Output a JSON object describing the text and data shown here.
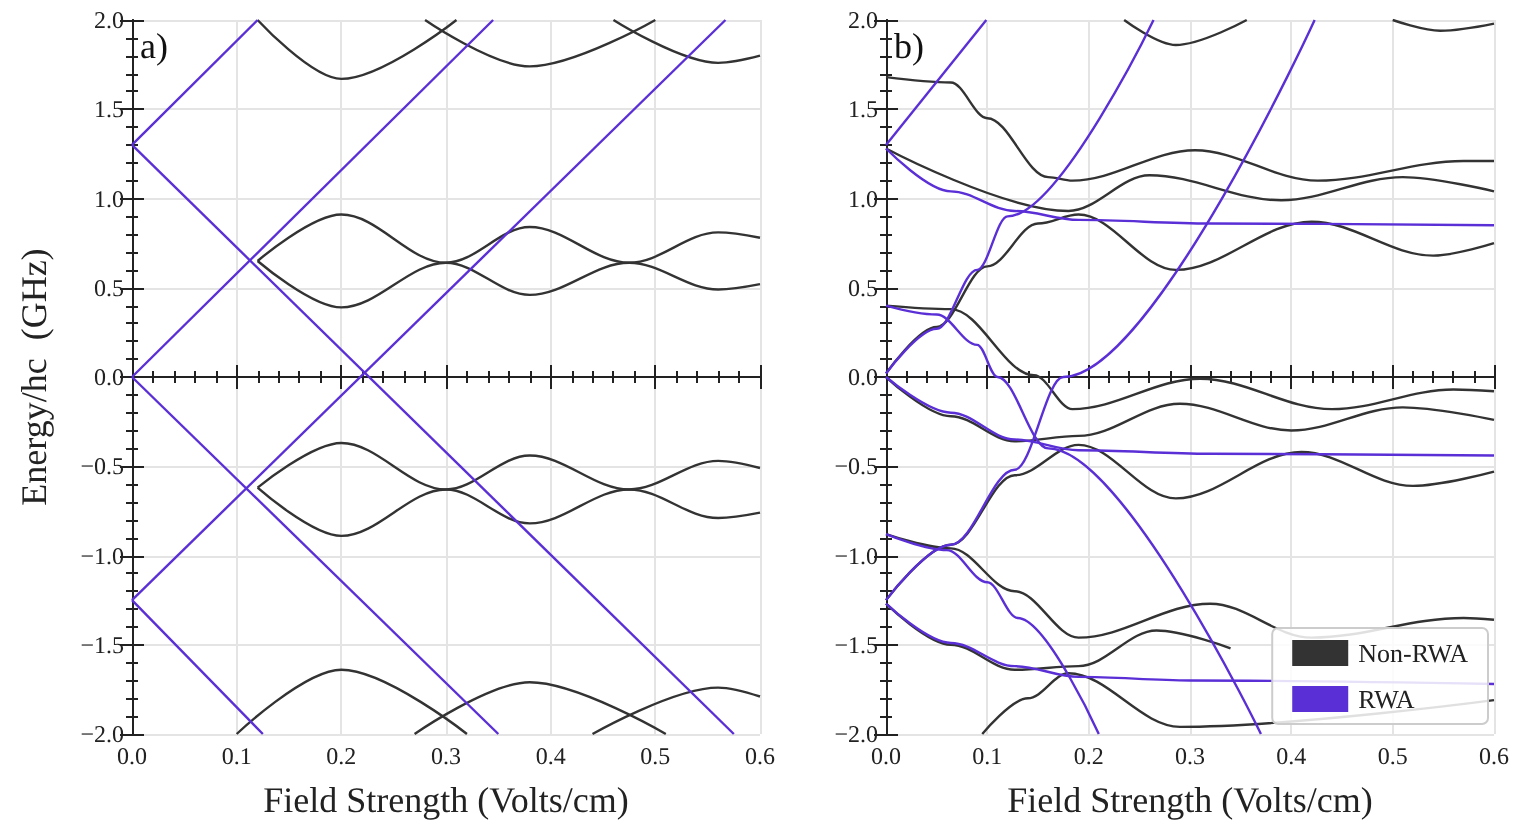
{
  "chart_data": [
    {
      "type": "line",
      "annotations": [
        "a)"
      ],
      "xlabel": "Field Strength (Volts/cm)",
      "ylabel": "Energy/hc  (GHz)",
      "xlim": [
        0,
        0.6
      ],
      "ylim": [
        -2,
        2
      ],
      "xticks": [
        {
          "value": 0,
          "label": "0.0"
        },
        {
          "value": 0.1,
          "label": "0.1"
        },
        {
          "value": 0.2,
          "label": "0.2"
        },
        {
          "value": 0.3,
          "label": "0.3"
        },
        {
          "value": 0.4,
          "label": "0.4"
        },
        {
          "value": 0.5,
          "label": "0.5"
        },
        {
          "value": 0.6,
          "label": "0.6"
        }
      ],
      "yticks": [
        {
          "value": -2,
          "label": "−2.0"
        },
        {
          "value": -1.5,
          "label": "−1.5"
        },
        {
          "value": -1,
          "label": "−1.0"
        },
        {
          "value": -0.5,
          "label": "−0.5"
        },
        {
          "value": 0,
          "label": "0.0"
        },
        {
          "value": 0.5,
          "label": "0.5"
        },
        {
          "value": 1,
          "label": "1.0"
        },
        {
          "value": 1.5,
          "label": "1.5"
        },
        {
          "value": 2,
          "label": "2.0"
        }
      ],
      "grid": true,
      "legend": false,
      "series": [
        {
          "color": "#333333",
          "x": [
            0.12,
            0.2,
            0.3,
            0.38,
            0.475,
            0.56,
            0.6
          ],
          "values": [
            0.65,
            0.91,
            0.64,
            0.46,
            0.64,
            0.81,
            0.78
          ]
        },
        {
          "color": "#333333",
          "x": [
            0.12,
            0.2,
            0.3,
            0.38,
            0.475,
            0.56,
            0.6
          ],
          "values": [
            0.65,
            0.39,
            0.64,
            0.84,
            0.64,
            0.49,
            0.52
          ]
        },
        {
          "color": "#333333",
          "x": [
            0.12,
            0.2,
            0.3,
            0.38,
            0.475,
            0.56,
            0.6
          ],
          "values": [
            -0.62,
            -0.37,
            -0.63,
            -0.82,
            -0.63,
            -0.47,
            -0.51
          ]
        },
        {
          "color": "#333333",
          "x": [
            0.12,
            0.2,
            0.3,
            0.38,
            0.475,
            0.56,
            0.6
          ],
          "values": [
            -0.62,
            -0.89,
            -0.63,
            -0.44,
            -0.63,
            -0.79,
            -0.76
          ]
        },
        {
          "color": "#333333",
          "x": [
            0.12,
            0.2,
            0.31
          ],
          "values": [
            2.0,
            1.67,
            2.0
          ]
        },
        {
          "color": "#333333",
          "x": [
            0.28,
            0.38,
            0.5
          ],
          "values": [
            2.0,
            1.74,
            2.0
          ]
        },
        {
          "color": "#333333",
          "x": [
            0.46,
            0.56,
            0.6
          ],
          "values": [
            2.0,
            1.76,
            1.8
          ]
        },
        {
          "color": "#333333",
          "x": [
            0.1,
            0.2,
            0.32
          ],
          "values": [
            -2.0,
            -1.64,
            -2.0
          ]
        },
        {
          "color": "#333333",
          "x": [
            0.27,
            0.38,
            0.51
          ],
          "values": [
            -2.0,
            -1.71,
            -2.0
          ]
        },
        {
          "color": "#333333",
          "x": [
            0.44,
            0.56,
            0.6
          ],
          "values": [
            -2.0,
            -1.74,
            -1.79
          ]
        },
        {
          "color": "#5a2fd6",
          "x": [
            0,
            0.12
          ],
          "values": [
            1.3,
            2.0
          ]
        },
        {
          "color": "#5a2fd6",
          "x": [
            0,
            0.345
          ],
          "values": [
            0.0,
            2.0
          ]
        },
        {
          "color": "#5a2fd6",
          "x": [
            0,
            0.567
          ],
          "values": [
            -1.25,
            2.0
          ]
        },
        {
          "color": "#5a2fd6",
          "x": [
            0,
            0.575
          ],
          "values": [
            1.3,
            -2.0
          ]
        },
        {
          "color": "#5a2fd6",
          "x": [
            0,
            0.35
          ],
          "values": [
            0.0,
            -2.0
          ]
        },
        {
          "color": "#5a2fd6",
          "x": [
            0,
            0.125
          ],
          "values": [
            -1.25,
            -2.0
          ]
        }
      ]
    },
    {
      "type": "line",
      "annotations": [
        "b)"
      ],
      "xlabel": "Field Strength (Volts/cm)",
      "xlim": [
        0,
        0.6
      ],
      "ylim": [
        -2,
        2
      ],
      "xticks": [
        {
          "value": 0,
          "label": "0.0"
        },
        {
          "value": 0.1,
          "label": "0.1"
        },
        {
          "value": 0.2,
          "label": "0.2"
        },
        {
          "value": 0.3,
          "label": "0.3"
        },
        {
          "value": 0.4,
          "label": "0.4"
        },
        {
          "value": 0.5,
          "label": "0.5"
        },
        {
          "value": 0.6,
          "label": "0.6"
        }
      ],
      "yticks": [
        {
          "value": -2,
          "label": "−2.0"
        },
        {
          "value": -1.5,
          "label": "−1.5"
        },
        {
          "value": -1,
          "label": "−1.0"
        },
        {
          "value": -0.5,
          "label": "−0.5"
        },
        {
          "value": 0,
          "label": "0.0"
        },
        {
          "value": 0.5,
          "label": "0.5"
        },
        {
          "value": 1,
          "label": "1.0"
        },
        {
          "value": 1.5,
          "label": "1.5"
        },
        {
          "value": 2,
          "label": "2.0"
        }
      ],
      "grid": true,
      "legend": "bottom right",
      "series": [
        {
          "name": "Non-RWA",
          "color": "#333333",
          "x": [
            0,
            0.064,
            0.1,
            0.16,
            0.184,
            0.305,
            0.426,
            0.57,
            0.6
          ],
          "values": [
            1.68,
            1.65,
            1.45,
            1.12,
            1.1,
            1.27,
            1.1,
            1.21,
            1.21
          ]
        },
        {
          "color": "#333333",
          "x": [
            0,
            0.18,
            0.26,
            0.39,
            0.51,
            0.6
          ],
          "values": [
            1.28,
            0.93,
            1.13,
            0.99,
            1.12,
            1.04
          ]
        },
        {
          "color": "#333333",
          "x": [
            0,
            0.064,
            0.146,
            0.184,
            0.31,
            0.44,
            0.56,
            0.6
          ],
          "values": [
            0.4,
            0.38,
            0.01,
            -0.18,
            -0.01,
            -0.18,
            -0.07,
            -0.08
          ]
        },
        {
          "color": "#333333",
          "x": [
            0,
            0.05,
            0.1,
            0.15,
            0.19,
            0.286,
            0.42,
            0.54,
            0.6
          ],
          "values": [
            0.02,
            0.28,
            0.62,
            0.86,
            0.91,
            0.6,
            0.87,
            0.68,
            0.75
          ]
        },
        {
          "color": "#333333",
          "x": [
            0.235,
            0.286,
            0.356
          ],
          "values": [
            2.0,
            1.86,
            2.0
          ]
        },
        {
          "color": "#333333",
          "x": [
            0.5,
            0.547,
            0.6
          ],
          "values": [
            2.0,
            1.94,
            1.98
          ]
        },
        {
          "color": "#333333",
          "x": [
            0,
            0.064,
            0.127,
            0.19,
            0.29,
            0.4,
            0.51,
            0.6
          ],
          "values": [
            0,
            -0.22,
            -0.36,
            -0.33,
            -0.15,
            -0.3,
            -0.17,
            -0.24
          ]
        },
        {
          "color": "#333333",
          "x": [
            0,
            0.064,
            0.127,
            0.19,
            0.286,
            0.41,
            0.52,
            0.6
          ],
          "values": [
            -1.25,
            -0.94,
            -0.55,
            -0.38,
            -0.68,
            -0.42,
            -0.61,
            -0.53
          ]
        },
        {
          "color": "#333333",
          "x": [
            0,
            0.064,
            0.127,
            0.19,
            0.32,
            0.42,
            0.57,
            0.6
          ],
          "values": [
            -0.88,
            -0.96,
            -1.2,
            -1.46,
            -1.27,
            -1.46,
            -1.35,
            -1.36
          ]
        },
        {
          "color": "#333333",
          "x": [
            0,
            0.064,
            0.127,
            0.19,
            0.267,
            0.34
          ],
          "values": [
            -1.27,
            -1.5,
            -1.64,
            -1.62,
            -1.42,
            -1.52
          ]
        },
        {
          "color": "#333333",
          "x": [
            0.095,
            0.14,
            0.18,
            0.29,
            0.6
          ],
          "values": [
            -2.0,
            -1.8,
            -1.66,
            -1.96,
            -1.81
          ]
        },
        {
          "name": "RWA",
          "color": "#5a2fd6",
          "x": [
            0,
            0.099
          ],
          "values": [
            1.3,
            2.0
          ]
        },
        {
          "color": "#5a2fd6",
          "x": [
            0,
            0.05,
            0.09,
            0.12,
            0.264
          ],
          "values": [
            0.02,
            0.27,
            0.6,
            0.9,
            2.0
          ]
        },
        {
          "color": "#5a2fd6",
          "x": [
            0,
            0.064,
            0.127,
            0.175,
            0.423
          ],
          "values": [
            -1.25,
            -0.94,
            -0.52,
            0.0,
            2.0
          ]
        },
        {
          "color": "#5a2fd6",
          "x": [
            0,
            0.05,
            0.09,
            0.11,
            0.16,
            0.37
          ],
          "values": [
            0.4,
            0.35,
            0.18,
            0.0,
            -0.4,
            -2.0
          ]
        },
        {
          "color": "#5a2fd6",
          "x": [
            0,
            0.06,
            0.1,
            0.13,
            0.21
          ],
          "values": [
            -0.88,
            -0.97,
            -1.15,
            -1.35,
            -2.0
          ]
        },
        {
          "color": "#5a2fd6",
          "x": [
            0,
            0.064,
            0.127,
            0.19,
            0.32,
            0.6
          ],
          "values": [
            1.28,
            1.04,
            0.93,
            0.88,
            0.86,
            0.85
          ]
        },
        {
          "color": "#5a2fd6",
          "x": [
            0,
            0.064,
            0.127,
            0.19,
            0.32,
            0.6
          ],
          "values": [
            0,
            -0.2,
            -0.35,
            -0.41,
            -0.43,
            -0.44
          ]
        },
        {
          "color": "#5a2fd6",
          "x": [
            0,
            0.064,
            0.127,
            0.19,
            0.3,
            0.6
          ],
          "values": [
            -1.27,
            -1.49,
            -1.62,
            -1.68,
            -1.7,
            -1.72
          ]
        }
      ]
    }
  ]
}
